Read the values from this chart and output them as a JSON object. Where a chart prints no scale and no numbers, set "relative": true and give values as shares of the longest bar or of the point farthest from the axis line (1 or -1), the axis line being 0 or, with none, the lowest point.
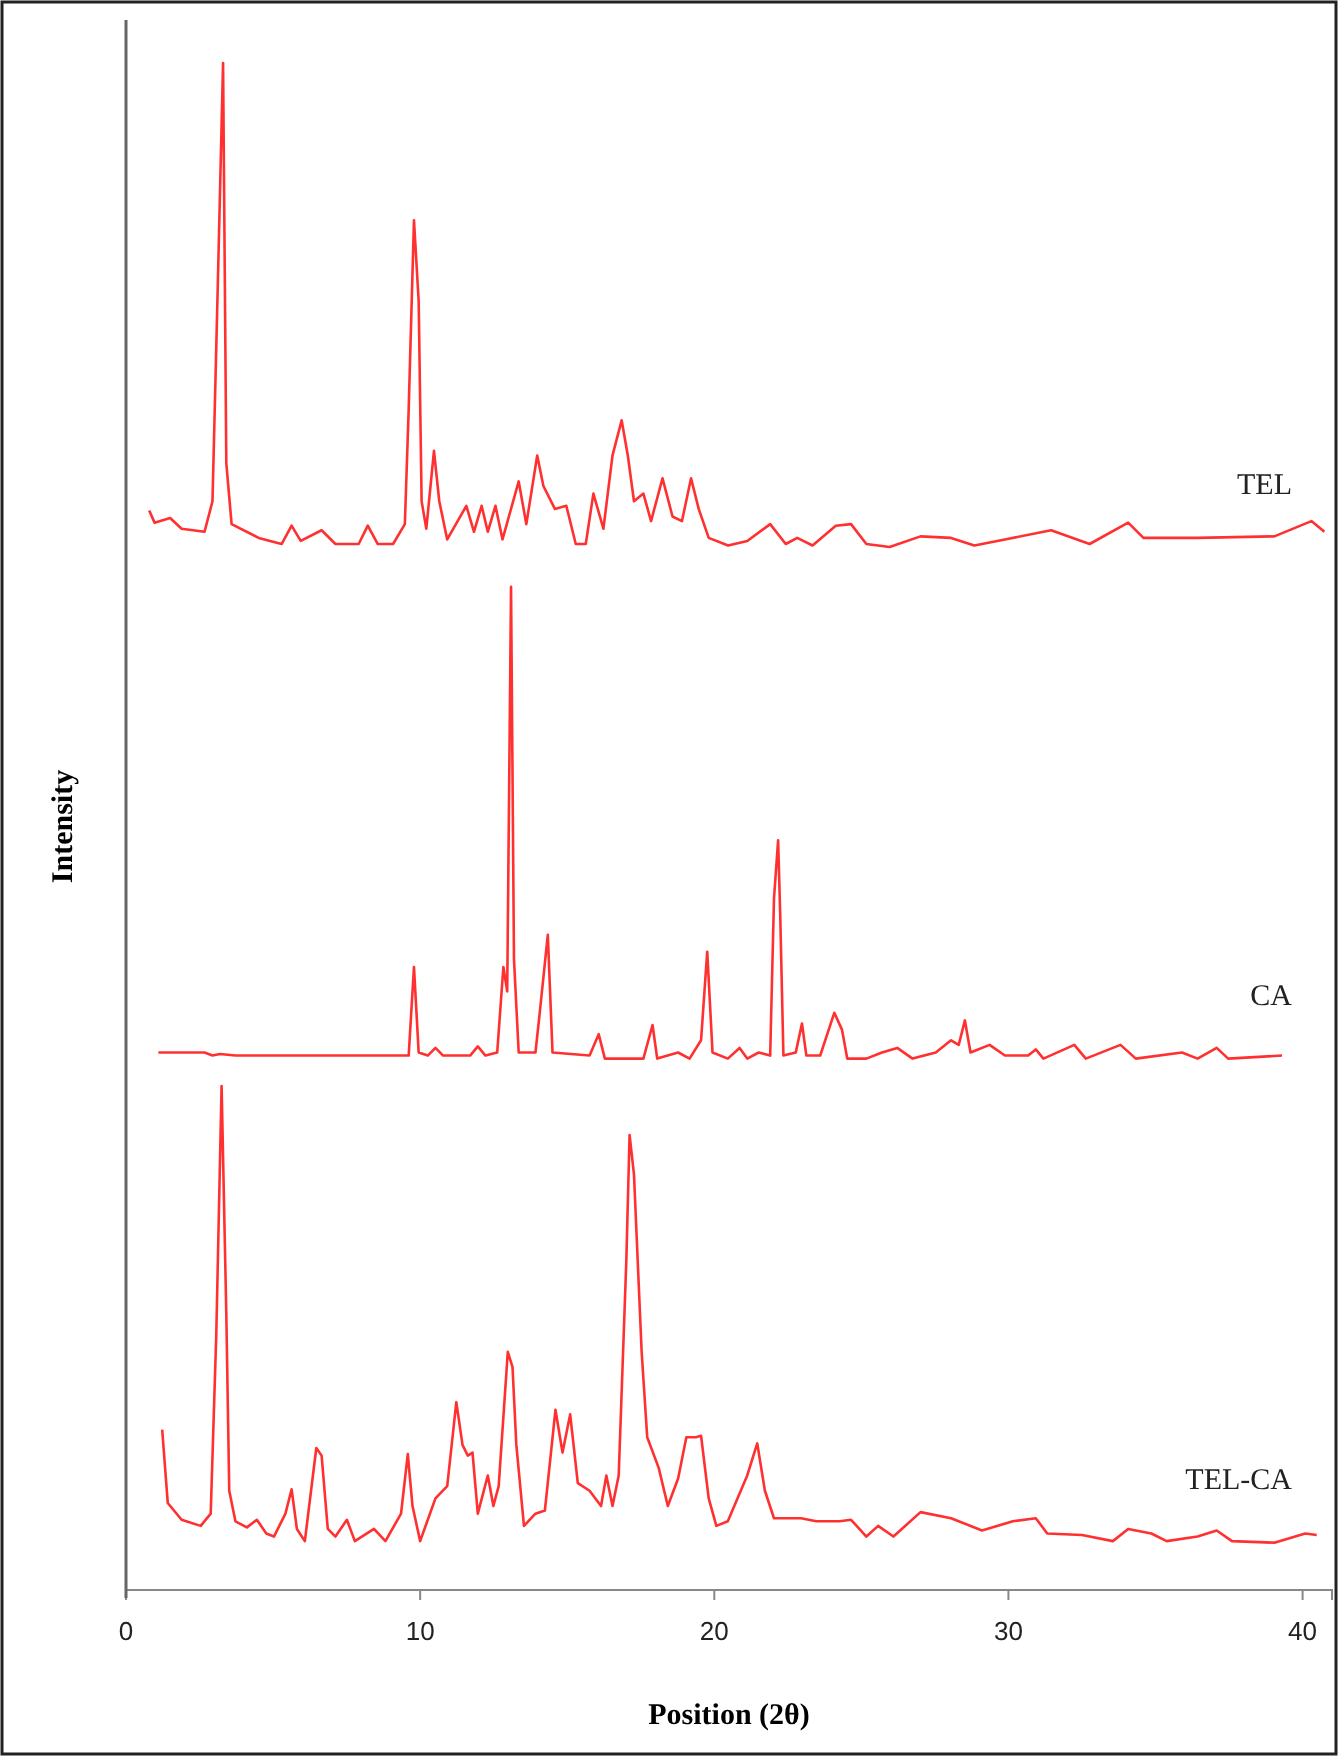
{
  "chart_data": {
    "type": "line",
    "relative": true,
    "xlabel": "Position (2θ)",
    "ylabel": "Intensity",
    "xlim": [
      0,
      41
    ],
    "xticks": [
      0,
      10,
      20,
      30,
      40
    ],
    "grid": false,
    "legend": false,
    "marker": "none",
    "line_style": "solid",
    "series": [
      {
        "name": "TEL",
        "color": "#ff3030",
        "x": [
          0.79,
          0.97,
          1.5,
          1.89,
          2.67,
          2.94,
          3.12,
          3.3,
          3.41,
          3.59,
          4.51,
          5.29,
          5.63,
          5.94,
          6.65,
          7.12,
          7.91,
          8.22,
          8.56,
          9.08,
          9.48,
          9.61,
          9.79,
          9.95,
          10.05,
          10.21,
          10.47,
          10.65,
          10.92,
          11.57,
          11.83,
          12.09,
          12.3,
          12.56,
          12.8,
          13.35,
          13.61,
          13.98,
          14.19,
          14.58,
          14.97,
          15.29,
          15.63,
          15.89,
          16.23,
          16.54,
          16.85,
          17.06,
          17.27,
          17.59,
          17.85,
          18.24,
          18.58,
          18.9,
          19.21,
          19.47,
          19.81,
          20.47,
          21.12,
          21.9,
          22.43,
          22.82,
          23.34,
          24.13,
          24.65,
          25.17,
          25.96,
          27.01,
          28.05,
          28.84,
          29.88,
          31.45,
          32.76,
          34.07,
          34.59,
          36.43,
          39.04,
          40.3,
          40.74
        ],
        "values": [
          0.707,
          0.699,
          0.702,
          0.695,
          0.693,
          0.713,
          0.854,
          1.0,
          0.738,
          0.698,
          0.689,
          0.685,
          0.697,
          0.687,
          0.694,
          0.685,
          0.685,
          0.697,
          0.685,
          0.685,
          0.698,
          0.773,
          0.897,
          0.844,
          0.713,
          0.695,
          0.746,
          0.713,
          0.688,
          0.71,
          0.693,
          0.71,
          0.693,
          0.71,
          0.688,
          0.726,
          0.698,
          0.743,
          0.723,
          0.708,
          0.71,
          0.685,
          0.685,
          0.718,
          0.695,
          0.743,
          0.766,
          0.743,
          0.713,
          0.718,
          0.7,
          0.728,
          0.703,
          0.7,
          0.728,
          0.708,
          0.689,
          0.684,
          0.687,
          0.698,
          0.685,
          0.689,
          0.684,
          0.697,
          0.698,
          0.685,
          0.683,
          0.69,
          0.689,
          0.684,
          0.688,
          0.694,
          0.685,
          0.699,
          0.689,
          0.689,
          0.69,
          0.7,
          0.693
        ]
      },
      {
        "name": "CA",
        "color": "#ff3030",
        "x": [
          1.1,
          2.67,
          2.94,
          3.2,
          3.72,
          9.61,
          9.79,
          9.95,
          10.26,
          10.52,
          10.78,
          11.7,
          11.96,
          12.22,
          12.62,
          12.83,
          12.96,
          13.09,
          13.19,
          13.35,
          13.92,
          14.06,
          14.34,
          14.5,
          15.76,
          16.07,
          16.28,
          17.59,
          17.9,
          18.06,
          18.77,
          19.16,
          19.55,
          19.76,
          19.94,
          20.46,
          20.86,
          21.12,
          21.51,
          21.9,
          22.03,
          22.17,
          22.24,
          22.35,
          22.77,
          22.98,
          23.13,
          23.6,
          24.08,
          24.34,
          24.52,
          25.17,
          25.7,
          26.22,
          26.74,
          27.53,
          28.05,
          28.31,
          28.52,
          28.71,
          29.36,
          29.88,
          30.67,
          30.93,
          31.19,
          32.24,
          32.63,
          33.81,
          34.33,
          35.9,
          36.43,
          37.08,
          37.47,
          39.3
        ],
        "values": [
          0.352,
          0.352,
          0.35,
          0.351,
          0.35,
          0.35,
          0.408,
          0.352,
          0.35,
          0.355,
          0.35,
          0.35,
          0.356,
          0.35,
          0.352,
          0.408,
          0.392,
          0.657,
          0.413,
          0.352,
          0.352,
          0.377,
          0.429,
          0.352,
          0.35,
          0.364,
          0.348,
          0.348,
          0.37,
          0.348,
          0.352,
          0.348,
          0.36,
          0.418,
          0.352,
          0.348,
          0.355,
          0.348,
          0.352,
          0.35,
          0.453,
          0.491,
          0.443,
          0.35,
          0.352,
          0.371,
          0.35,
          0.35,
          0.378,
          0.367,
          0.348,
          0.348,
          0.352,
          0.355,
          0.348,
          0.352,
          0.36,
          0.357,
          0.373,
          0.352,
          0.357,
          0.35,
          0.35,
          0.354,
          0.348,
          0.357,
          0.348,
          0.357,
          0.348,
          0.352,
          0.348,
          0.355,
          0.348,
          0.35
        ]
      },
      {
        "name": "TEL-CA",
        "color": "#ff3030",
        "x": [
          1.23,
          1.42,
          1.89,
          2.54,
          2.88,
          3.07,
          3.25,
          3.41,
          3.51,
          3.72,
          4.11,
          4.45,
          4.77,
          5.03,
          5.42,
          5.63,
          5.81,
          6.08,
          6.47,
          6.65,
          6.86,
          7.12,
          7.51,
          7.78,
          8.43,
          8.82,
          9.35,
          9.58,
          9.74,
          10.0,
          10.52,
          10.92,
          11.23,
          11.44,
          11.62,
          11.78,
          11.96,
          12.3,
          12.49,
          12.67,
          12.98,
          13.14,
          13.27,
          13.53,
          13.92,
          14.24,
          14.6,
          14.84,
          15.1,
          15.36,
          15.76,
          16.15,
          16.33,
          16.54,
          16.75,
          17.01,
          17.12,
          17.27,
          17.53,
          17.72,
          18.11,
          18.42,
          18.77,
          19.05,
          19.37,
          19.55,
          19.81,
          20.07,
          20.46,
          21.12,
          21.46,
          21.72,
          22.03,
          22.95,
          23.47,
          24.26,
          24.65,
          25.17,
          25.57,
          26.09,
          27.01,
          28.05,
          29.1,
          30.15,
          30.93,
          31.32,
          32.5,
          33.55,
          34.07,
          34.86,
          35.38,
          36.43,
          37.08,
          37.6,
          39.04,
          40.09,
          40.48
        ],
        "values": [
          0.105,
          0.057,
          0.046,
          0.042,
          0.05,
          0.168,
          0.33,
          0.181,
          0.065,
          0.045,
          0.041,
          0.046,
          0.037,
          0.035,
          0.05,
          0.066,
          0.04,
          0.032,
          0.093,
          0.088,
          0.04,
          0.035,
          0.046,
          0.032,
          0.04,
          0.032,
          0.05,
          0.089,
          0.055,
          0.032,
          0.06,
          0.068,
          0.123,
          0.095,
          0.088,
          0.09,
          0.05,
          0.075,
          0.055,
          0.068,
          0.156,
          0.146,
          0.095,
          0.042,
          0.05,
          0.052,
          0.118,
          0.09,
          0.115,
          0.07,
          0.065,
          0.055,
          0.075,
          0.055,
          0.075,
          0.216,
          0.298,
          0.272,
          0.156,
          0.1,
          0.08,
          0.055,
          0.073,
          0.1,
          0.1,
          0.101,
          0.06,
          0.042,
          0.045,
          0.075,
          0.096,
          0.065,
          0.047,
          0.047,
          0.045,
          0.045,
          0.046,
          0.035,
          0.042,
          0.035,
          0.051,
          0.047,
          0.039,
          0.045,
          0.047,
          0.037,
          0.036,
          0.032,
          0.04,
          0.037,
          0.032,
          0.035,
          0.039,
          0.032,
          0.031,
          0.037,
          0.036
        ]
      }
    ]
  }
}
